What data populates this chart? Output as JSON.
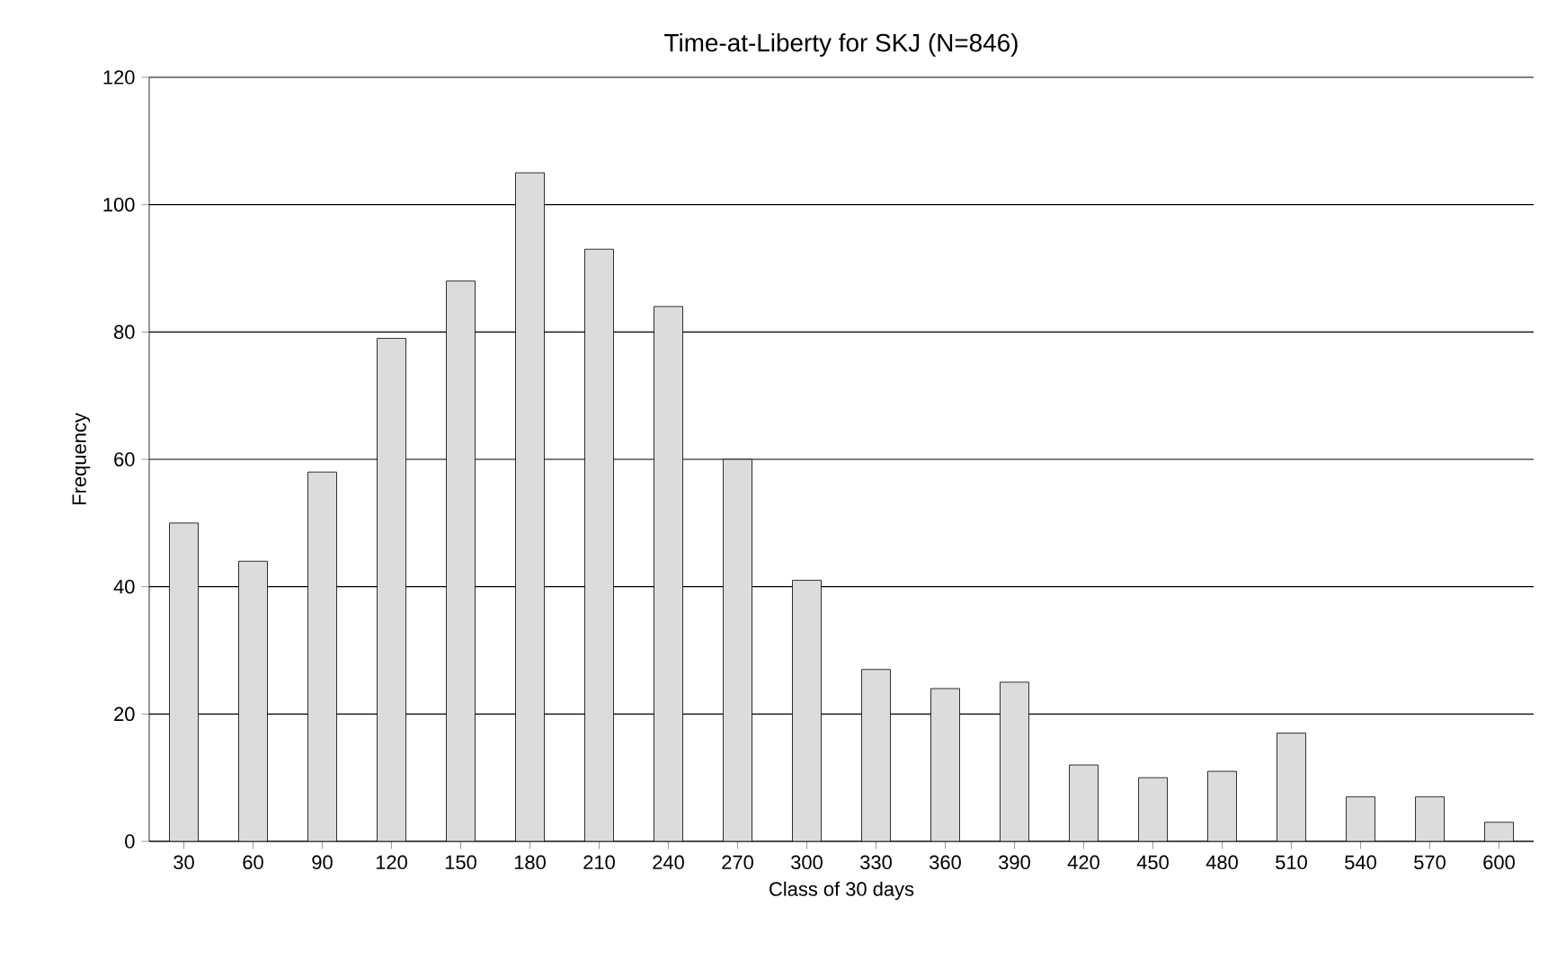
{
  "chart_data": {
    "type": "bar",
    "title": "Time-at-Liberty for SKJ (N=846)",
    "xlabel": "Class of 30 days",
    "ylabel": "Frequency",
    "categories": [
      "30",
      "60",
      "90",
      "120",
      "150",
      "180",
      "210",
      "240",
      "270",
      "300",
      "330",
      "360",
      "390",
      "420",
      "450",
      "480",
      "510",
      "540",
      "570",
      "600"
    ],
    "values": [
      50,
      44,
      58,
      79,
      88,
      105,
      93,
      84,
      60,
      41,
      27,
      24,
      25,
      12,
      10,
      11,
      17,
      7,
      7,
      3
    ],
    "color": "#dcdcdc",
    "ylim": [
      0,
      120
    ],
    "yticks": [
      0,
      20,
      40,
      60,
      80,
      100,
      120
    ],
    "grid": "y"
  }
}
